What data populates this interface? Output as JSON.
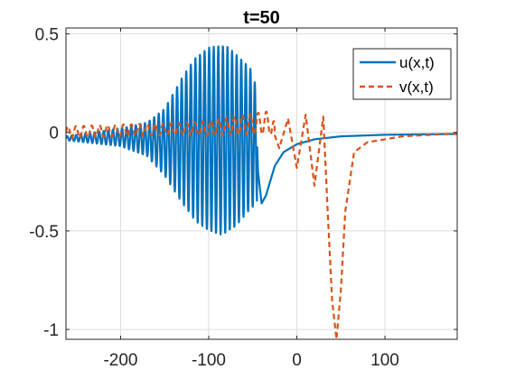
{
  "chart_data": {
    "type": "line",
    "title": "t=50",
    "xlabel": "",
    "ylabel": "",
    "xlim": [
      -262,
      182
    ],
    "ylim": [
      -1.05,
      0.53
    ],
    "xticks": [
      -200,
      -100,
      0,
      100
    ],
    "xtick_labels": [
      "-200",
      "-100",
      "0",
      "100"
    ],
    "yticks": [
      0.5,
      0,
      -0.5,
      -1
    ],
    "ytick_labels": [
      "0.5",
      "0",
      "-0.5",
      "-1"
    ],
    "grid": true,
    "legend_position": "top-right",
    "series": [
      {
        "name": "u(x,t)",
        "color": "#0072BD",
        "style": "solid",
        "points": [
          [
            -262,
            -0.02
          ],
          [
            -200,
            0.02
          ],
          [
            -170,
            0.05
          ],
          [
            -150,
            0.12
          ],
          [
            -130,
            0.28
          ],
          [
            -115,
            0.38
          ],
          [
            -100,
            0.43
          ],
          [
            -90,
            0.44
          ],
          [
            -80,
            0.44
          ],
          [
            -70,
            0.4
          ],
          [
            -60,
            0.36
          ],
          [
            -48,
            0.3
          ],
          [
            -44,
            -0.2
          ],
          [
            -40,
            -0.36
          ],
          [
            -35,
            -0.32
          ],
          [
            -25,
            -0.17
          ],
          [
            -15,
            -0.1
          ],
          [
            0,
            -0.06
          ],
          [
            20,
            -0.035
          ],
          [
            50,
            -0.02
          ],
          [
            100,
            -0.012
          ],
          [
            182,
            -0.008
          ]
        ],
        "envelope_lower": [
          [
            -262,
            -0.04
          ],
          [
            -200,
            -0.07
          ],
          [
            -170,
            -0.12
          ],
          [
            -150,
            -0.22
          ],
          [
            -130,
            -0.36
          ],
          [
            -115,
            -0.45
          ],
          [
            -100,
            -0.5
          ],
          [
            -85,
            -0.52
          ],
          [
            -70,
            -0.48
          ],
          [
            -55,
            -0.4
          ],
          [
            -45,
            -0.36
          ]
        ]
      },
      {
        "name": "v(x,t)",
        "color": "#D95319",
        "style": "dashed",
        "points": [
          [
            -262,
            0.0
          ],
          [
            -200,
            0.01
          ],
          [
            -100,
            0.02
          ],
          [
            -60,
            0.04
          ],
          [
            -30,
            0.05
          ],
          [
            -20,
            -0.08
          ],
          [
            -10,
            0.07
          ],
          [
            0,
            -0.18
          ],
          [
            10,
            0.09
          ],
          [
            20,
            -0.27
          ],
          [
            30,
            0.08
          ],
          [
            35,
            -0.4
          ],
          [
            40,
            -0.85
          ],
          [
            45,
            -1.05
          ],
          [
            50,
            -0.8
          ],
          [
            55,
            -0.4
          ],
          [
            65,
            -0.1
          ],
          [
            80,
            -0.05
          ],
          [
            120,
            -0.02
          ],
          [
            182,
            -0.005
          ]
        ]
      }
    ]
  }
}
